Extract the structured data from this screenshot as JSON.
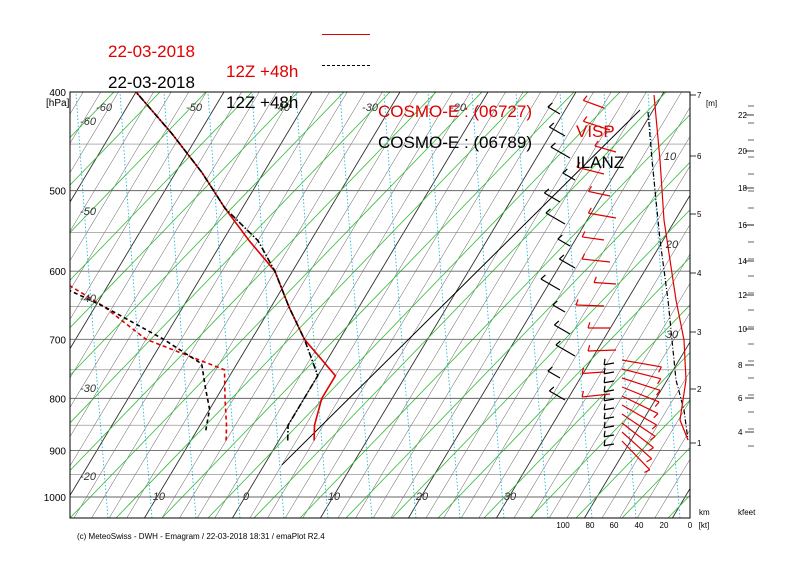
{
  "titles": {
    "red": {
      "date": "22-03-2018",
      "time": "12Z +48h",
      "model": "COSMO-E : (06727)",
      "station": "VISP",
      "color": "#e00000"
    },
    "black": {
      "date": "22-03-2018",
      "time": "12Z +48h",
      "model": "COSMO-E : (06789)",
      "station": "ILANZ",
      "color": "#000000"
    }
  },
  "credit": "(c) MeteoSwiss - DWH - Emagram / 22-03-2018  18:31 / emaPlot R2.4",
  "chart_data": {
    "type": "line",
    "title": "",
    "pressure_axis": {
      "label": "[hPa]",
      "ticks": [
        "400",
        "500",
        "600",
        "700",
        "800",
        "900",
        "1000"
      ],
      "scale": "log",
      "range": [
        1030,
        400
      ]
    },
    "isotherm_labels": [
      "-60",
      "-50",
      "-40",
      "-30",
      "-20",
      "-10",
      "0",
      "10",
      "20",
      "30"
    ],
    "isotherm_bottom_labels": [
      "-10",
      "0",
      "10",
      "20",
      "30"
    ],
    "isotherm_top_labels": [
      "-60",
      "-50",
      "-40",
      "-30",
      "-20"
    ],
    "mixing_ratio_labels": [
      "10",
      "20",
      "30"
    ],
    "km_axis": {
      "label": "[m]",
      "unit": "km",
      "ticks": [
        "1",
        "2",
        "3",
        "4",
        "5",
        "6",
        "7"
      ]
    },
    "kfeet_axis": {
      "unit": "kfeet",
      "ticks": [
        "4",
        "6",
        "8",
        "10",
        "12",
        "14",
        "16",
        "18",
        "20",
        "22"
      ]
    },
    "wind_axis": {
      "unit": "[kt]",
      "ticks": [
        "100",
        "80",
        "60",
        "40",
        "20",
        "0"
      ]
    },
    "series": [
      {
        "name": "VISP",
        "color": "#e00000",
        "temperature": [
          [
            880,
            4
          ],
          [
            850,
            3
          ],
          [
            800,
            2
          ],
          [
            760,
            2
          ],
          [
            700,
            -4
          ],
          [
            650,
            -8
          ],
          [
            600,
            -12
          ],
          [
            560,
            -17
          ],
          [
            520,
            -22
          ],
          [
            480,
            -27
          ],
          [
            440,
            -33
          ],
          [
            400,
            -40
          ]
        ],
        "dewpoint": [
          [
            880,
            -6
          ],
          [
            850,
            -7
          ],
          [
            800,
            -9
          ],
          [
            750,
            -11
          ],
          [
            700,
            -22
          ],
          [
            650,
            -29
          ],
          [
            600,
            -38
          ],
          [
            560,
            -44
          ],
          [
            520,
            -47
          ],
          [
            480,
            -45
          ],
          [
            440,
            -45
          ],
          [
            400,
            -48
          ]
        ]
      },
      {
        "name": "ILANZ",
        "color": "#000000",
        "temperature": [
          [
            880,
            1
          ],
          [
            850,
            0
          ],
          [
            800,
            0
          ],
          [
            760,
            0
          ],
          [
            700,
            -4
          ],
          [
            650,
            -8
          ],
          [
            600,
            -12
          ],
          [
            560,
            -16
          ],
          [
            520,
            -22
          ],
          [
            480,
            -27
          ],
          [
            440,
            -33
          ],
          [
            400,
            -40
          ]
        ],
        "dewpoint": [
          [
            860,
            -9
          ],
          [
            820,
            -10
          ],
          [
            780,
            -12
          ],
          [
            740,
            -14
          ],
          [
            700,
            -20
          ],
          [
            650,
            -29
          ],
          [
            600,
            -40
          ],
          [
            560,
            -47
          ],
          [
            520,
            -51
          ],
          [
            480,
            -51
          ],
          [
            440,
            -48
          ],
          [
            400,
            -48
          ]
        ]
      }
    ]
  }
}
